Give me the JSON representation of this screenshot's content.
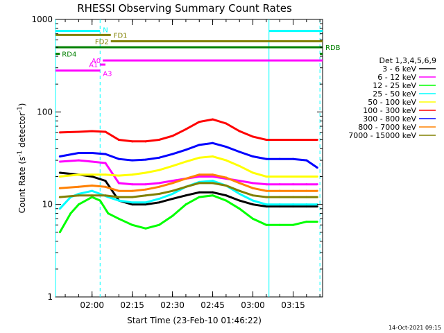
{
  "chart_data": {
    "type": "line",
    "title": "RHESSI Observing Summary Count Rates",
    "xlabel": "Start Time (23-Feb-10 01:46:22)",
    "ylabel_main": "Count Rate (s",
    "ylabel_sup1": "-1",
    "ylabel_mid": " detector",
    "ylabel_sup2": "-1",
    "ylabel_end": ")",
    "y_scale": "log",
    "ylim": [
      1,
      1000
    ],
    "xlim": [
      "01:46:22",
      "03:26:00"
    ],
    "y_ticks": [
      {
        "value": 1,
        "label": "1"
      },
      {
        "value": 10,
        "label": "10"
      },
      {
        "value": 100,
        "label": "100"
      },
      {
        "value": 1000,
        "label": "1000"
      }
    ],
    "x_ticks": [
      {
        "time": "02:00",
        "label": "02:00"
      },
      {
        "time": "02:15",
        "label": "02:15"
      },
      {
        "time": "02:30",
        "label": "02:30"
      },
      {
        "time": "02:45",
        "label": "02:45"
      },
      {
        "time": "03:00",
        "label": "03:00"
      },
      {
        "time": "03:15",
        "label": "03:15"
      }
    ],
    "legend_title": "Det 1,3,4,5,6,9",
    "legend_placement": "right",
    "timestamp": "14-Oct-2021 09:15",
    "series": [
      {
        "name": "3 - 6 keV",
        "color": "#000000",
        "points": [
          [
            "01:48",
            22
          ],
          [
            "01:55",
            21
          ],
          [
            "02:00",
            20
          ],
          [
            "02:05",
            18
          ],
          [
            "02:10",
            11
          ],
          [
            "02:15",
            10
          ],
          [
            "02:20",
            10
          ],
          [
            "02:25",
            10.5
          ],
          [
            "02:30",
            11.5
          ],
          [
            "02:35",
            12.5
          ],
          [
            "02:40",
            13.5
          ],
          [
            "02:45",
            13.5
          ],
          [
            "02:50",
            12.5
          ],
          [
            "02:55",
            11
          ],
          [
            "03:00",
            10
          ],
          [
            "03:05",
            9.5
          ],
          [
            "03:10",
            9.5
          ],
          [
            "03:15",
            9.5
          ],
          [
            "03:20",
            9.5
          ],
          [
            "03:24",
            9.5
          ]
        ]
      },
      {
        "name": "6 - 12 keV",
        "color": "#ff00ff",
        "points": [
          [
            "01:48",
            29
          ],
          [
            "01:55",
            30
          ],
          [
            "02:00",
            29
          ],
          [
            "02:05",
            28
          ],
          [
            "02:10",
            17
          ],
          [
            "02:15",
            16.5
          ],
          [
            "02:20",
            16.5
          ],
          [
            "02:25",
            17
          ],
          [
            "02:30",
            18
          ],
          [
            "02:35",
            19
          ],
          [
            "02:40",
            20
          ],
          [
            "02:45",
            20
          ],
          [
            "02:50",
            19
          ],
          [
            "02:55",
            18
          ],
          [
            "03:00",
            17
          ],
          [
            "03:05",
            16.5
          ],
          [
            "03:10",
            16.5
          ],
          [
            "03:15",
            16.5
          ],
          [
            "03:20",
            16.5
          ],
          [
            "03:24",
            16.5
          ]
        ]
      },
      {
        "name": "12 - 25 keV",
        "color": "#00ff00",
        "points": [
          [
            "01:48",
            5
          ],
          [
            "01:52",
            8
          ],
          [
            "01:55",
            10
          ],
          [
            "02:00",
            12
          ],
          [
            "02:03",
            11
          ],
          [
            "02:06",
            8
          ],
          [
            "02:10",
            7
          ],
          [
            "02:15",
            6
          ],
          [
            "02:20",
            5.5
          ],
          [
            "02:25",
            6
          ],
          [
            "02:30",
            7.5
          ],
          [
            "02:35",
            10
          ],
          [
            "02:40",
            12
          ],
          [
            "02:45",
            12.5
          ],
          [
            "02:50",
            11
          ],
          [
            "02:55",
            9
          ],
          [
            "03:00",
            7
          ],
          [
            "03:05",
            6
          ],
          [
            "03:10",
            6
          ],
          [
            "03:15",
            6
          ],
          [
            "03:20",
            6.5
          ],
          [
            "03:24",
            6.5
          ]
        ]
      },
      {
        "name": "25 - 50 keV",
        "color": "#00ffff",
        "points": [
          [
            "01:48",
            9
          ],
          [
            "01:52",
            12
          ],
          [
            "01:55",
            13
          ],
          [
            "02:00",
            14
          ],
          [
            "02:03",
            13
          ],
          [
            "02:06",
            12
          ],
          [
            "02:10",
            11
          ],
          [
            "02:15",
            10.5
          ],
          [
            "02:20",
            10.5
          ],
          [
            "02:25",
            11.5
          ],
          [
            "02:30",
            13
          ],
          [
            "02:35",
            15.5
          ],
          [
            "02:40",
            17.5
          ],
          [
            "02:45",
            18
          ],
          [
            "02:50",
            16
          ],
          [
            "02:55",
            13
          ],
          [
            "03:00",
            11
          ],
          [
            "03:05",
            10
          ],
          [
            "03:10",
            10
          ],
          [
            "03:15",
            10
          ],
          [
            "03:20",
            10
          ],
          [
            "03:24",
            10
          ]
        ]
      },
      {
        "name": "50 - 100 keV",
        "color": "#ffff00",
        "points": [
          [
            "01:48",
            20
          ],
          [
            "01:55",
            21
          ],
          [
            "02:00",
            21
          ],
          [
            "02:05",
            21
          ],
          [
            "02:10",
            20.5
          ],
          [
            "02:15",
            21
          ],
          [
            "02:20",
            22
          ],
          [
            "02:25",
            23.5
          ],
          [
            "02:30",
            26
          ],
          [
            "02:35",
            29
          ],
          [
            "02:40",
            32
          ],
          [
            "02:45",
            33
          ],
          [
            "02:50",
            30
          ],
          [
            "02:55",
            26
          ],
          [
            "03:00",
            22
          ],
          [
            "03:05",
            20
          ],
          [
            "03:10",
            20
          ],
          [
            "03:15",
            20
          ],
          [
            "03:20",
            20
          ],
          [
            "03:24",
            20
          ]
        ]
      },
      {
        "name": "100 - 300 keV",
        "color": "#ff0000",
        "points": [
          [
            "01:48",
            60
          ],
          [
            "01:55",
            61
          ],
          [
            "02:00",
            62
          ],
          [
            "02:05",
            61
          ],
          [
            "02:10",
            50
          ],
          [
            "02:15",
            48
          ],
          [
            "02:20",
            48
          ],
          [
            "02:25",
            50
          ],
          [
            "02:30",
            55
          ],
          [
            "02:35",
            65
          ],
          [
            "02:40",
            78
          ],
          [
            "02:45",
            83
          ],
          [
            "02:50",
            75
          ],
          [
            "02:55",
            62
          ],
          [
            "03:00",
            54
          ],
          [
            "03:05",
            50
          ],
          [
            "03:10",
            50
          ],
          [
            "03:15",
            50
          ],
          [
            "03:20",
            50
          ],
          [
            "03:24",
            50
          ]
        ]
      },
      {
        "name": "300 - 800 keV",
        "color": "#0000ff",
        "points": [
          [
            "01:48",
            33
          ],
          [
            "01:55",
            36
          ],
          [
            "02:00",
            36
          ],
          [
            "02:05",
            35
          ],
          [
            "02:10",
            31
          ],
          [
            "02:15",
            30
          ],
          [
            "02:20",
            30.5
          ],
          [
            "02:25",
            32
          ],
          [
            "02:30",
            35
          ],
          [
            "02:35",
            39
          ],
          [
            "02:40",
            44
          ],
          [
            "02:45",
            46
          ],
          [
            "02:50",
            42
          ],
          [
            "02:55",
            37
          ],
          [
            "03:00",
            33
          ],
          [
            "03:05",
            31
          ],
          [
            "03:10",
            31
          ],
          [
            "03:15",
            31
          ],
          [
            "03:20",
            30
          ],
          [
            "03:24",
            25
          ]
        ]
      },
      {
        "name": "800 - 7000 keV",
        "color": "#ff8000",
        "points": [
          [
            "01:48",
            15
          ],
          [
            "01:55",
            15.5
          ],
          [
            "02:00",
            16
          ],
          [
            "02:05",
            15.5
          ],
          [
            "02:10",
            14
          ],
          [
            "02:15",
            14
          ],
          [
            "02:20",
            14.5
          ],
          [
            "02:25",
            15.5
          ],
          [
            "02:30",
            17
          ],
          [
            "02:35",
            19
          ],
          [
            "02:40",
            21
          ],
          [
            "02:45",
            21
          ],
          [
            "02:50",
            19.5
          ],
          [
            "02:55",
            17
          ],
          [
            "03:00",
            15
          ],
          [
            "03:05",
            14
          ],
          [
            "03:10",
            14
          ],
          [
            "03:15",
            14
          ],
          [
            "03:20",
            14
          ],
          [
            "03:24",
            14
          ]
        ]
      },
      {
        "name": "7000 - 15000 keV",
        "color": "#808000",
        "points": [
          [
            "01:48",
            12
          ],
          [
            "01:55",
            12.5
          ],
          [
            "02:00",
            12.5
          ],
          [
            "02:05",
            12.5
          ],
          [
            "02:10",
            12
          ],
          [
            "02:15",
            12
          ],
          [
            "02:20",
            12.5
          ],
          [
            "02:25",
            13
          ],
          [
            "02:30",
            14
          ],
          [
            "02:35",
            15.5
          ],
          [
            "02:40",
            17
          ],
          [
            "02:45",
            17
          ],
          [
            "02:50",
            16
          ],
          [
            "02:55",
            14
          ],
          [
            "03:00",
            12.5
          ],
          [
            "03:05",
            12
          ],
          [
            "03:10",
            12
          ],
          [
            "03:15",
            12
          ],
          [
            "03:20",
            12
          ],
          [
            "03:24",
            12
          ]
        ]
      }
    ],
    "flags": [
      {
        "label": "N",
        "color": "#00ffff",
        "value": 750,
        "segments": [
          [
            "01:46:22",
            "02:03"
          ],
          [
            "03:06",
            "03:26"
          ]
        ]
      },
      {
        "label": "FD1",
        "color": "#808000",
        "value": 680,
        "segments": [
          [
            "01:46:22",
            "02:07"
          ]
        ]
      },
      {
        "label": "FD2",
        "color": "#808000",
        "value": 580,
        "segments": [
          [
            "02:07",
            "03:26"
          ]
        ]
      },
      {
        "label": "RDB",
        "color": "#008000",
        "value": 500,
        "segments": [
          [
            "01:46:22",
            "03:26"
          ]
        ]
      },
      {
        "label": "RD4",
        "color": "#008000",
        "value": 425,
        "segments": [
          [
            "01:46:22",
            "01:48"
          ],
          [
            "03:25",
            "03:26"
          ]
        ]
      },
      {
        "label": "A0",
        "color": "#ff00ff",
        "value": 360,
        "segments": [
          [
            "02:04",
            "03:26"
          ]
        ]
      },
      {
        "label": "A1",
        "color": "#ff00ff",
        "value": 325,
        "segments": [
          [
            "02:03",
            "02:05"
          ]
        ]
      },
      {
        "label": "A3",
        "color": "#ff00ff",
        "value": 280,
        "segments": [
          [
            "01:46:22",
            "02:03"
          ]
        ]
      }
    ],
    "vertical_lines": [
      {
        "time": "02:03",
        "color": "#00ffff",
        "style": "dashed"
      },
      {
        "time": "03:06",
        "color": "#00ffff",
        "style": "solid"
      },
      {
        "time": "03:25",
        "color": "#00ffff",
        "style": "dashed"
      }
    ],
    "grid": false
  }
}
